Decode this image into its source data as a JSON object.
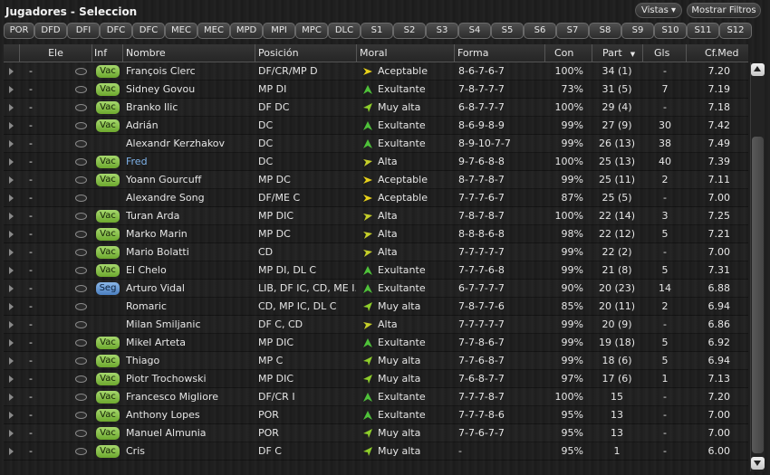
{
  "title": "Jugadores - Seleccion",
  "buttons": {
    "vistas": "Vistas ▾",
    "filtros": "Mostrar Filtros"
  },
  "tabs": [
    "POR",
    "DFD",
    "DFI",
    "DFC",
    "DFC",
    "MEC",
    "MEC",
    "MPD",
    "MPI",
    "MPC",
    "DLC",
    "S1",
    "S2",
    "S3",
    "S4",
    "S5",
    "S6",
    "S7",
    "S8",
    "S9",
    "S10",
    "S11",
    "S12"
  ],
  "columns": {
    "ele": "Ele",
    "inf": "Inf",
    "nombre": "Nombre",
    "posicion": "Posición",
    "moral": "Moral",
    "forma": "Forma",
    "con": "Con",
    "part": "Part",
    "gls": "Gls",
    "cfmed": "Cf.Med"
  },
  "moral_colors": {
    "Acceptable": "#e8d21a",
    "Exultante": "#4fc23a",
    "Muy alta": "#8fcf2b",
    "Alta": "#c6cf2a"
  },
  "rows": [
    {
      "ele": "-",
      "inf": "Vac",
      "nombre": "François Clerc",
      "pos": "DF/CR/MP D",
      "moral": "Aceptable",
      "mood": "Acceptable",
      "forma": "8-6-7-6-7",
      "con": "100%",
      "part": "34 (1)",
      "gls": "-",
      "cf": "7.20"
    },
    {
      "ele": "-",
      "inf": "Vac",
      "nombre": "Sidney Govou",
      "pos": "MP DI",
      "moral": "Exultante",
      "mood": "Exultante",
      "forma": "7-8-7-7-7",
      "con": "73%",
      "part": "31 (5)",
      "gls": "7",
      "cf": "7.19"
    },
    {
      "ele": "-",
      "inf": "Vac",
      "nombre": "Branko Ilic",
      "pos": "DF DC",
      "moral": "Muy alta",
      "mood": "Muy alta",
      "forma": "6-8-7-7-7",
      "con": "100%",
      "part": "29 (4)",
      "gls": "-",
      "cf": "7.18"
    },
    {
      "ele": "-",
      "inf": "Vac",
      "nombre": "Adrián",
      "pos": "DC",
      "moral": "Exultante",
      "mood": "Exultante",
      "forma": "8-6-9-8-9",
      "con": "99%",
      "part": "27 (9)",
      "gls": "30",
      "cf": "7.42"
    },
    {
      "ele": "-",
      "inf": "",
      "nombre": "Alexandr Kerzhakov",
      "pos": "DC",
      "moral": "Exultante",
      "mood": "Exultante",
      "forma": "8-9-10-7-7",
      "con": "99%",
      "part": "26 (13)",
      "gls": "38",
      "cf": "7.49"
    },
    {
      "ele": "-",
      "inf": "Vac",
      "nombre": "Fred",
      "pos": "DC",
      "moral": "Alta",
      "mood": "Alta",
      "forma": "9-7-6-8-8",
      "con": "100%",
      "part": "25 (13)",
      "gls": "40",
      "cf": "7.39",
      "link": true
    },
    {
      "ele": "-",
      "inf": "Vac",
      "nombre": "Yoann Gourcuff",
      "pos": "MP DC",
      "moral": "Aceptable",
      "mood": "Acceptable",
      "forma": "8-7-7-8-7",
      "con": "99%",
      "part": "25 (11)",
      "gls": "2",
      "cf": "7.11"
    },
    {
      "ele": "-",
      "inf": "",
      "nombre": "Alexandre Song",
      "pos": "DF/ME C",
      "moral": "Aceptable",
      "mood": "Acceptable",
      "forma": "7-7-7-6-7",
      "con": "87%",
      "part": "25 (5)",
      "gls": "-",
      "cf": "7.00"
    },
    {
      "ele": "-",
      "inf": "Vac",
      "nombre": "Turan Arda",
      "pos": "MP DIC",
      "moral": "Alta",
      "mood": "Alta",
      "forma": "7-8-7-8-7",
      "con": "100%",
      "part": "22 (14)",
      "gls": "3",
      "cf": "7.25"
    },
    {
      "ele": "-",
      "inf": "Vac",
      "nombre": "Marko Marin",
      "pos": "MP DC",
      "moral": "Alta",
      "mood": "Alta",
      "forma": "8-8-8-6-8",
      "con": "98%",
      "part": "22 (12)",
      "gls": "5",
      "cf": "7.21"
    },
    {
      "ele": "-",
      "inf": "Vac",
      "nombre": "Mario Bolatti",
      "pos": "CD",
      "moral": "Alta",
      "mood": "Alta",
      "forma": "7-7-7-7-7",
      "con": "99%",
      "part": "22 (2)",
      "gls": "-",
      "cf": "7.00"
    },
    {
      "ele": "-",
      "inf": "Vac",
      "nombre": "El Chelo",
      "pos": "MP DI, DL C",
      "moral": "Exultante",
      "mood": "Exultante",
      "forma": "7-7-7-6-8",
      "con": "99%",
      "part": "21 (8)",
      "gls": "5",
      "cf": "7.31"
    },
    {
      "ele": "-",
      "inf": "Seg",
      "nombre": "Arturo Vidal",
      "pos": "LIB, DF IC, CD, ME I...",
      "moral": "Exultante",
      "mood": "Exultante",
      "forma": "6-7-7-7-7",
      "con": "90%",
      "part": "20 (23)",
      "gls": "14",
      "cf": "6.88"
    },
    {
      "ele": "-",
      "inf": "",
      "nombre": "Romaric",
      "pos": "CD, MP IC, DL C",
      "moral": "Muy alta",
      "mood": "Muy alta",
      "forma": "7-8-7-7-6",
      "con": "85%",
      "part": "20 (11)",
      "gls": "2",
      "cf": "6.94"
    },
    {
      "ele": "-",
      "inf": "",
      "nombre": "Milan Smiljanic",
      "pos": "DF C, CD",
      "moral": "Alta",
      "mood": "Alta",
      "forma": "7-7-7-7-7",
      "con": "99%",
      "part": "20 (9)",
      "gls": "-",
      "cf": "6.86"
    },
    {
      "ele": "-",
      "inf": "Vac",
      "nombre": "Mikel Arteta",
      "pos": "MP DIC",
      "moral": "Exultante",
      "mood": "Exultante",
      "forma": "7-7-8-6-7",
      "con": "99%",
      "part": "19 (18)",
      "gls": "5",
      "cf": "6.92"
    },
    {
      "ele": "-",
      "inf": "Vac",
      "nombre": "Thiago",
      "pos": "MP C",
      "moral": "Muy alta",
      "mood": "Muy alta",
      "forma": "7-7-6-8-7",
      "con": "99%",
      "part": "18 (6)",
      "gls": "5",
      "cf": "6.94"
    },
    {
      "ele": "-",
      "inf": "Vac",
      "nombre": "Piotr Trochowski",
      "pos": "MP DIC",
      "moral": "Muy alta",
      "mood": "Muy alta",
      "forma": "7-6-8-7-7",
      "con": "97%",
      "part": "17 (6)",
      "gls": "1",
      "cf": "7.13"
    },
    {
      "ele": "-",
      "inf": "Vac",
      "nombre": "Francesco Migliore",
      "pos": "DF/CR I",
      "moral": "Exultante",
      "mood": "Exultante",
      "forma": "7-7-7-8-7",
      "con": "100%",
      "part": "15",
      "gls": "-",
      "cf": "7.20"
    },
    {
      "ele": "-",
      "inf": "Vac",
      "nombre": "Anthony Lopes",
      "pos": "POR",
      "moral": "Exultante",
      "mood": "Exultante",
      "forma": "7-7-7-8-6",
      "con": "95%",
      "part": "13",
      "gls": "-",
      "cf": "7.00"
    },
    {
      "ele": "-",
      "inf": "Vac",
      "nombre": "Manuel Almunia",
      "pos": "POR",
      "moral": "Muy alta",
      "mood": "Muy alta",
      "forma": "7-7-6-7-7",
      "con": "95%",
      "part": "13",
      "gls": "-",
      "cf": "7.00"
    },
    {
      "ele": "-",
      "inf": "Vac",
      "nombre": "Cris",
      "pos": "DF C",
      "moral": "Muy alta",
      "mood": "Muy alta",
      "forma": "-",
      "con": "95%",
      "part": "1",
      "gls": "-",
      "cf": "6.00"
    }
  ]
}
